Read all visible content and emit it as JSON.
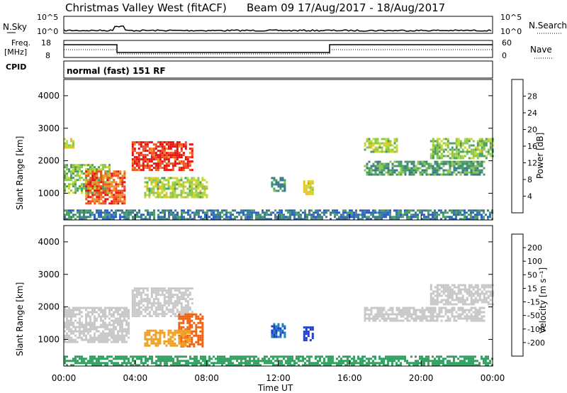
{
  "header": {
    "title": "Christmas Valley West (fitACF)",
    "beam_info": "Beam 09  17/Aug/2017 - 18/Aug/2017"
  },
  "top_panels": {
    "nsky_label": "N.Sky",
    "nsky_ticks": [
      "10^5",
      "10^0"
    ],
    "nsearch_label": "N.Search",
    "nsearch_ticks": [
      "10^5",
      "10^0"
    ],
    "freq_label_1": "Freq.",
    "freq_label_2": "[MHz]",
    "freq_ticks": [
      "18",
      "8"
    ],
    "nave_label": "Nave",
    "nave_ticks": [
      "60",
      "0"
    ],
    "cpid_label": "CPID",
    "cpid_text": "normal (fast) 151 RF"
  },
  "colors": {
    "power_scale": [
      "#1a1aff",
      "#2a5ad0",
      "#3a7a8a",
      "#4aa060",
      "#8ac850",
      "#c8d830",
      "#f0c020",
      "#f09020",
      "#f05020",
      "#e81010"
    ],
    "velocity_scale": [
      "#2040c8",
      "#2080c0",
      "#30a060",
      "#80c840",
      "#c8c8c8",
      "#e8c040",
      "#f0a020",
      "#f06010",
      "#e02010"
    ]
  },
  "chart_data": [
    {
      "type": "heatmap",
      "panel": "power",
      "ylabel": "Slant Range [km]",
      "yticks": [
        "1000",
        "2000",
        "3000",
        "4000"
      ],
      "ylim": [
        180,
        4500
      ],
      "colorbar_label": "Power [dB]",
      "colorbar_ticks": [
        "4",
        "8",
        "12",
        "16",
        "20",
        "24",
        "28"
      ],
      "colorbar_range": [
        0,
        32
      ],
      "regions": [
        {
          "t0": 0.0,
          "t1": 2.6,
          "r0": 1000,
          "r1": 1900,
          "value": 14
        },
        {
          "t0": 1.2,
          "t1": 3.4,
          "r0": 700,
          "r1": 1700,
          "value": 27
        },
        {
          "t0": 3.8,
          "t1": 7.2,
          "r0": 1700,
          "r1": 2600,
          "value": 29
        },
        {
          "t0": 4.5,
          "t1": 8.0,
          "r0": 900,
          "r1": 1500,
          "value": 16
        },
        {
          "t0": 0.0,
          "t1": 0.5,
          "r0": 2400,
          "r1": 2700,
          "value": 18
        },
        {
          "t0": 11.6,
          "t1": 12.4,
          "r0": 1100,
          "r1": 1500,
          "value": 10
        },
        {
          "t0": 13.4,
          "t1": 13.9,
          "r0": 1000,
          "r1": 1400,
          "value": 19
        },
        {
          "t0": 16.8,
          "t1": 23.5,
          "r0": 1600,
          "r1": 2000,
          "value": 11
        },
        {
          "t0": 16.8,
          "t1": 18.6,
          "r0": 2300,
          "r1": 2700,
          "value": 16
        },
        {
          "t0": 20.5,
          "t1": 24.0,
          "r0": 2100,
          "r1": 2700,
          "value": 14
        },
        {
          "t0": 0.0,
          "t1": 24.0,
          "r0": 200,
          "r1": 500,
          "value": 8
        }
      ]
    },
    {
      "type": "heatmap",
      "panel": "velocity",
      "ylabel": "Slant Range [km]",
      "yticks": [
        "1000",
        "2000",
        "3000",
        "4000"
      ],
      "ylim": [
        180,
        4500
      ],
      "colorbar_label": "Velocity [m s⁻¹]",
      "colorbar_ticks": [
        "200",
        "100",
        "50",
        "15",
        "-15",
        "-50",
        "-100",
        "-200"
      ],
      "regions": [
        {
          "t0": 0.0,
          "t1": 3.6,
          "r0": 900,
          "r1": 2000,
          "value": 0
        },
        {
          "t0": 3.8,
          "t1": 7.2,
          "r0": 1700,
          "r1": 2600,
          "value": 0
        },
        {
          "t0": 6.4,
          "t1": 7.8,
          "r0": 800,
          "r1": 1800,
          "value": -90
        },
        {
          "t0": 4.5,
          "t1": 7.0,
          "r0": 800,
          "r1": 1300,
          "value": -40
        },
        {
          "t0": 11.6,
          "t1": 12.4,
          "r0": 1100,
          "r1": 1500,
          "value": 150
        },
        {
          "t0": 13.4,
          "t1": 13.9,
          "r0": 1000,
          "r1": 1400,
          "value": 200
        },
        {
          "t0": 16.8,
          "t1": 23.5,
          "r0": 1600,
          "r1": 2000,
          "value": 0
        },
        {
          "t0": 20.5,
          "t1": 24.0,
          "r0": 2100,
          "r1": 2700,
          "value": 0
        },
        {
          "t0": 0.0,
          "t1": 24.0,
          "r0": 200,
          "r1": 500,
          "value": 40
        }
      ]
    }
  ],
  "xaxis": {
    "label": "Time UT",
    "ticks": [
      "00:00",
      "04:00",
      "08:00",
      "12:00",
      "16:00",
      "20:00",
      "00:00"
    ],
    "range_hours": [
      0,
      24
    ]
  }
}
